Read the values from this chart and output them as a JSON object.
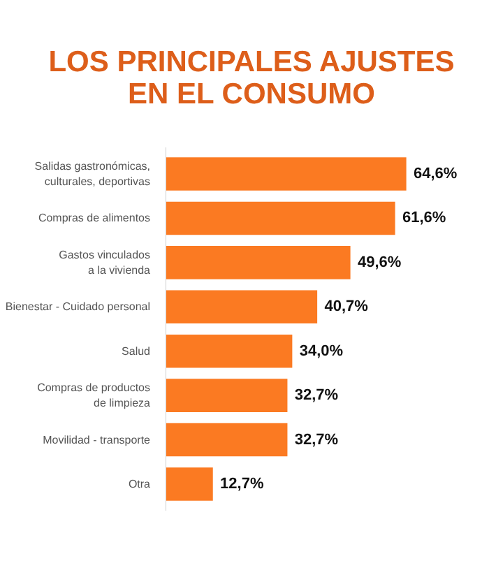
{
  "chart_data": {
    "type": "bar",
    "orientation": "horizontal",
    "title": "LOS PRINCIPALES AJUSTES EN EL CONSUMO",
    "categories": [
      "Salidas gastronómicas,\nculturales, deportivas",
      "Compras de alimentos",
      "Gastos vinculados\na la vivienda",
      "Bienestar - Cuidado personal",
      "Salud",
      "Compras de productos\nde limpieza",
      "Movilidad - transporte",
      "Otra"
    ],
    "values": [
      64.6,
      61.6,
      49.6,
      40.7,
      34.0,
      32.7,
      32.7,
      12.7
    ],
    "value_labels": [
      "64,6%",
      "61,6%",
      "49,6%",
      "40,7%",
      "34,0%",
      "32,7%",
      "32,7%",
      "12,7%"
    ],
    "color": "#fb7a22",
    "grid": false
  }
}
